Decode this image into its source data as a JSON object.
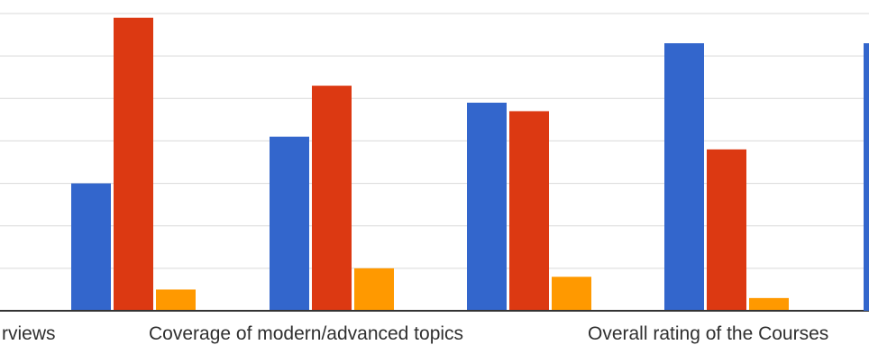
{
  "chart_data": {
    "type": "bar",
    "categories": [
      "Interviews",
      "Coverage of modern/advanced topics",
      "Overall rating of the Courses",
      ""
    ],
    "category_labels_visible": [
      "rviews",
      "Coverage of modern/advanced topics",
      "Overall rating of the Courses"
    ],
    "series": [
      {
        "color": "#3366cc",
        "values": [
          3.0,
          4.1,
          4.9,
          6.3
        ]
      },
      {
        "color": "#dc3912",
        "values": [
          6.9,
          5.3,
          4.7,
          3.8
        ]
      },
      {
        "color": "#ff9900",
        "values": [
          0.5,
          1.0,
          0.8,
          0.3
        ]
      }
    ],
    "ylim": [
      0,
      7
    ],
    "gridlines": [
      1,
      2,
      3,
      4,
      5,
      6,
      7
    ],
    "grid": true,
    "legend": "none"
  }
}
